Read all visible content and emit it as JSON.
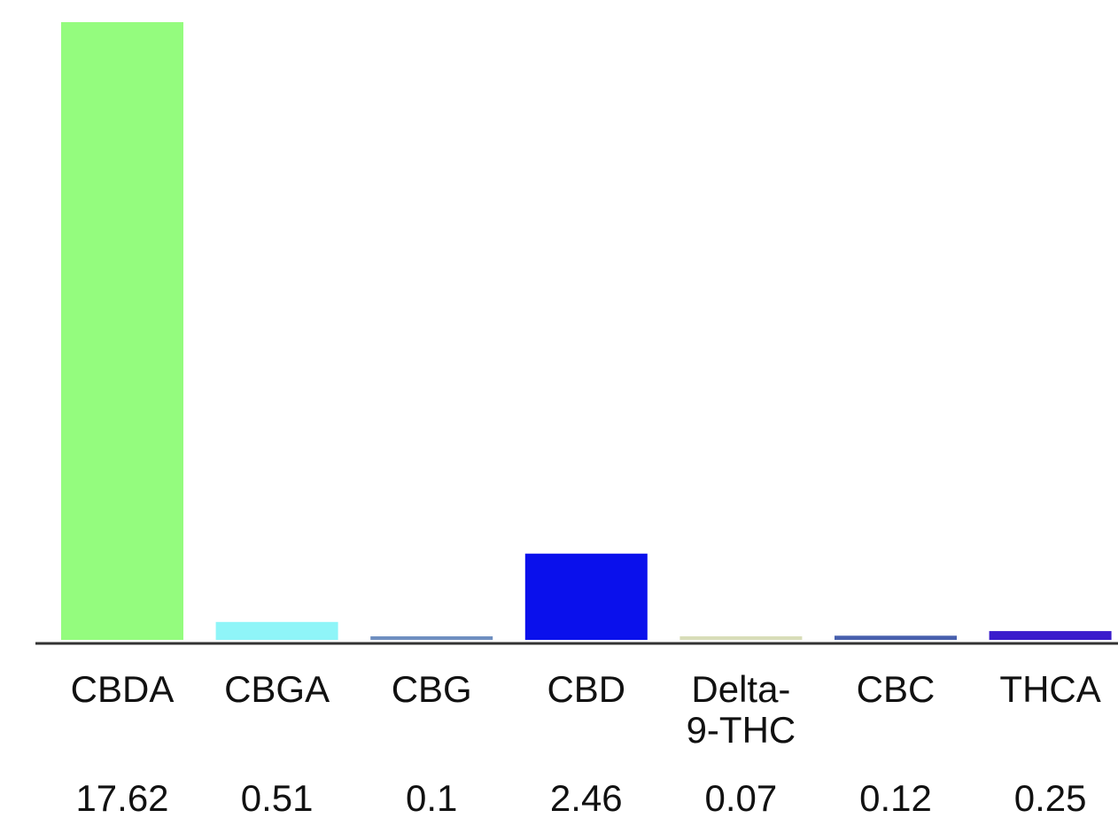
{
  "chart_data": {
    "type": "bar",
    "categories": [
      "CBDA",
      "CBGA",
      "CBG",
      "CBD",
      "Delta-9-THC",
      "CBC",
      "THCA"
    ],
    "category_label_lines": [
      [
        "CBDA"
      ],
      [
        "CBGA"
      ],
      [
        "CBG"
      ],
      [
        "CBD"
      ],
      [
        "Delta-",
        "9-THC"
      ],
      [
        "CBC"
      ],
      [
        "THCA"
      ]
    ],
    "values": [
      17.62,
      0.51,
      0.1,
      2.46,
      0.07,
      0.12,
      0.25
    ],
    "value_labels": [
      "17.62",
      "0.51",
      "0.1",
      "2.46",
      "0.07",
      "0.12",
      "0.25"
    ],
    "colors": [
      "#94fc7e",
      "#8ff5f8",
      "#6f8fc0",
      "#0a10ec",
      "#d8ddb8",
      "#4860ad",
      "#3a1ccc"
    ],
    "title": "",
    "xlabel": "",
    "ylabel": "",
    "ylim": [
      0,
      17.62
    ],
    "grid": false,
    "legend": "none"
  }
}
